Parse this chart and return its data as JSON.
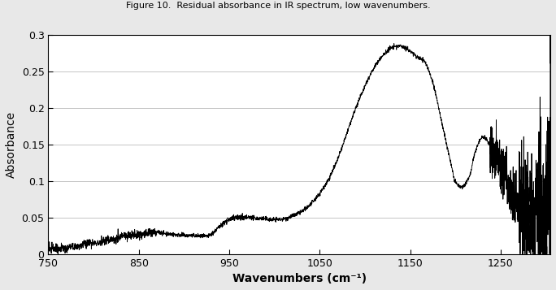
{
  "title": "Figure 10.  Residual absorbance in IR spectrum, low wavenumbers.",
  "xlabel": "Wavenumbers (cm⁻¹)",
  "ylabel": "Absorbance",
  "xlim": [
    750,
    1305
  ],
  "ylim": [
    0,
    0.3
  ],
  "xticks": [
    750,
    850,
    950,
    1050,
    1150,
    1250
  ],
  "yticks": [
    0,
    0.05,
    0.1,
    0.15,
    0.2,
    0.25,
    0.3
  ],
  "line_color": "#000000",
  "bg_color": "#ffffff",
  "fig_bg_color": "#e8e8e8",
  "title_fontsize": 8,
  "label_fontsize": 10,
  "tick_fontsize": 9
}
